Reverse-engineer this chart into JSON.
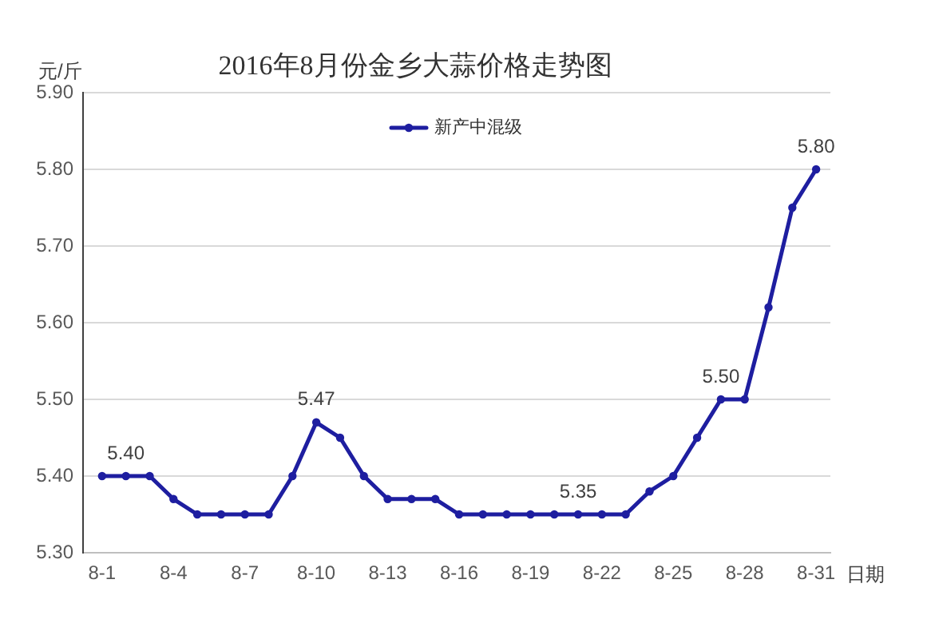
{
  "chart_data": {
    "type": "line",
    "title": "2016年8月份金乡大蒜价格走势图",
    "xlabel": "日期",
    "ylabel": "元/斤",
    "categories": [
      "8-1",
      null,
      null,
      "8-4",
      null,
      null,
      "8-7",
      null,
      null,
      "8-10",
      null,
      null,
      "8-13",
      null,
      null,
      "8-16",
      null,
      null,
      "8-19",
      null,
      null,
      "8-22",
      null,
      null,
      "8-25",
      null,
      null,
      "8-28",
      null,
      null,
      "8-31"
    ],
    "series": [
      {
        "name": "新产中混级",
        "color": "#1e1ea0",
        "values": [
          5.4,
          5.4,
          5.4,
          5.37,
          5.35,
          5.35,
          5.35,
          5.35,
          5.4,
          5.47,
          5.45,
          5.4,
          5.37,
          5.37,
          5.37,
          5.35,
          5.35,
          5.35,
          5.35,
          5.35,
          5.35,
          5.35,
          5.35,
          5.38,
          5.4,
          5.45,
          5.5,
          5.5,
          5.62,
          5.75,
          5.8
        ],
        "value_labels": [
          null,
          "5.40",
          null,
          null,
          null,
          null,
          null,
          null,
          null,
          "5.47",
          null,
          null,
          null,
          null,
          null,
          null,
          null,
          null,
          null,
          null,
          "5.35",
          null,
          null,
          null,
          null,
          null,
          "5.50",
          null,
          null,
          null,
          "5.80"
        ]
      }
    ],
    "ylim": [
      5.3,
      5.9
    ],
    "yticks": [
      {
        "value": 5.3,
        "label": "5.30"
      },
      {
        "value": 5.4,
        "label": "5.40"
      },
      {
        "value": 5.5,
        "label": "5.50"
      },
      {
        "value": 5.6,
        "label": "5.60"
      },
      {
        "value": 5.7,
        "label": "5.70"
      },
      {
        "value": 5.8,
        "label": "5.80"
      },
      {
        "value": 5.9,
        "label": "5.90"
      }
    ],
    "grid": "y",
    "legend": "top",
    "marker": "circle",
    "line_style": "solid"
  }
}
